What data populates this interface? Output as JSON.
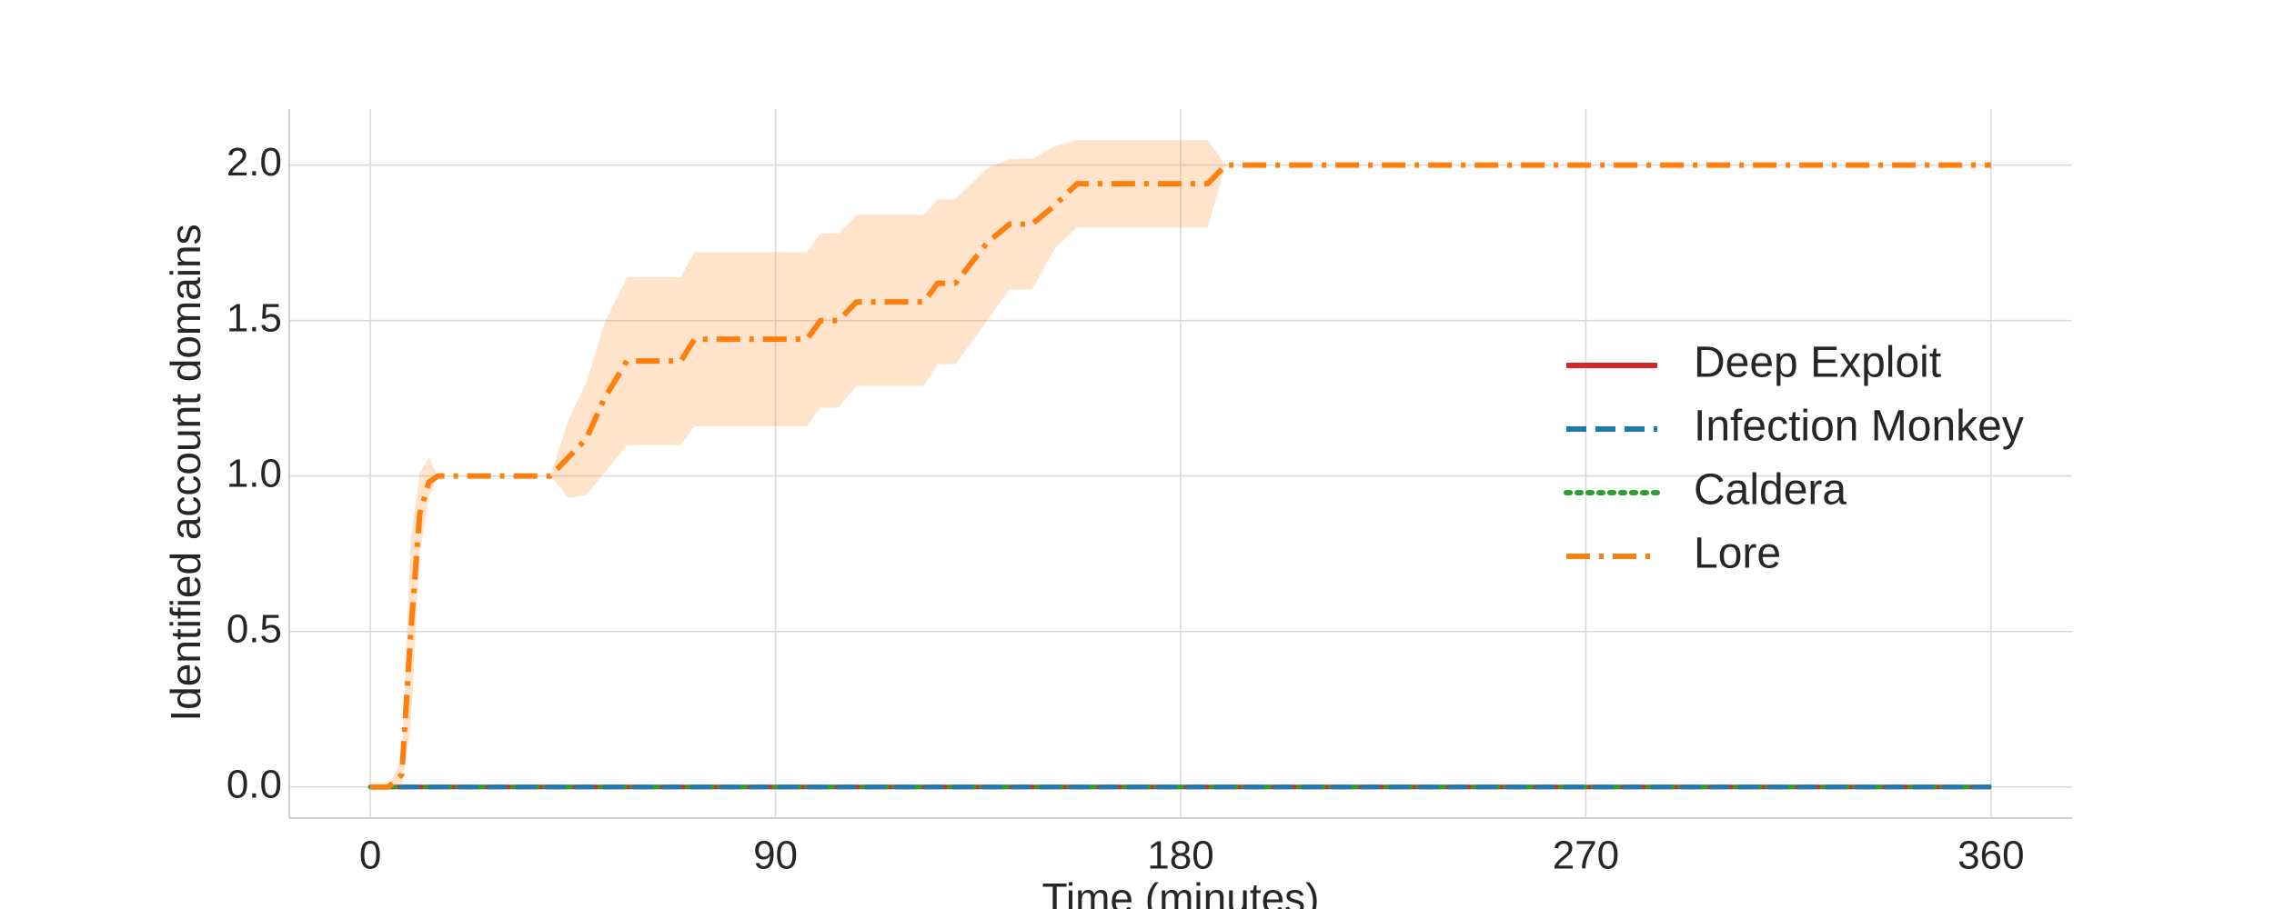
{
  "chart_data": {
    "type": "line",
    "title": "",
    "xlabel": "Time (minutes)",
    "ylabel": "Identified account domains",
    "xlim": [
      -18,
      378
    ],
    "ylim": [
      -0.1,
      2.18
    ],
    "xticks": [
      0,
      90,
      180,
      270,
      360
    ],
    "yticks": [
      0.0,
      0.5,
      1.0,
      1.5,
      2.0
    ],
    "xtick_labels": [
      "0",
      "90",
      "180",
      "270",
      "360"
    ],
    "ytick_labels": [
      "0.0",
      "0.5",
      "1.0",
      "1.5",
      "2.0"
    ],
    "grid": true,
    "legend_position": "center-right",
    "series": [
      {
        "name": "Deep Exploit",
        "color": "#d62728",
        "dash": "solid",
        "x": [
          0,
          360
        ],
        "y": [
          0,
          0
        ]
      },
      {
        "name": "Infection Monkey",
        "color": "#1f77b4",
        "dash": "dashed",
        "x": [
          0,
          360
        ],
        "y": [
          0,
          0
        ]
      },
      {
        "name": "Caldera",
        "color": "#2ca02c",
        "dash": "dotted",
        "x": [
          0,
          360
        ],
        "y": [
          0,
          0
        ]
      },
      {
        "name": "Lore",
        "color": "#ff7f0e",
        "dash": "dashdot",
        "x": [
          0,
          4,
          7,
          9,
          11,
          13,
          15,
          40,
          44,
          48,
          52,
          57,
          69,
          72,
          97,
          100,
          104,
          108,
          123,
          126,
          130,
          137,
          142,
          147,
          152,
          157,
          162,
          186,
          190,
          360
        ],
        "y": [
          0,
          0,
          0.04,
          0.5,
          0.88,
          0.98,
          1.0,
          1.0,
          1.06,
          1.12,
          1.25,
          1.37,
          1.37,
          1.44,
          1.44,
          1.5,
          1.5,
          1.56,
          1.56,
          1.62,
          1.62,
          1.75,
          1.81,
          1.81,
          1.87,
          1.94,
          1.94,
          1.94,
          2.0,
          2.0
        ],
        "band_lower": [
          0,
          0,
          0,
          0.2,
          0.75,
          0.93,
          1.0,
          1.0,
          0.93,
          0.94,
          1.01,
          1.1,
          1.1,
          1.16,
          1.16,
          1.22,
          1.22,
          1.29,
          1.29,
          1.36,
          1.36,
          1.5,
          1.6,
          1.6,
          1.73,
          1.8,
          1.8,
          1.8,
          2.0,
          2.0
        ],
        "band_upper": [
          0,
          0,
          0.09,
          0.8,
          1.01,
          1.06,
          1.0,
          1.0,
          1.18,
          1.3,
          1.49,
          1.64,
          1.64,
          1.72,
          1.72,
          1.78,
          1.78,
          1.84,
          1.84,
          1.89,
          1.89,
          1.99,
          2.02,
          2.02,
          2.06,
          2.08,
          2.08,
          2.08,
          2.0,
          2.0
        ]
      }
    ]
  }
}
